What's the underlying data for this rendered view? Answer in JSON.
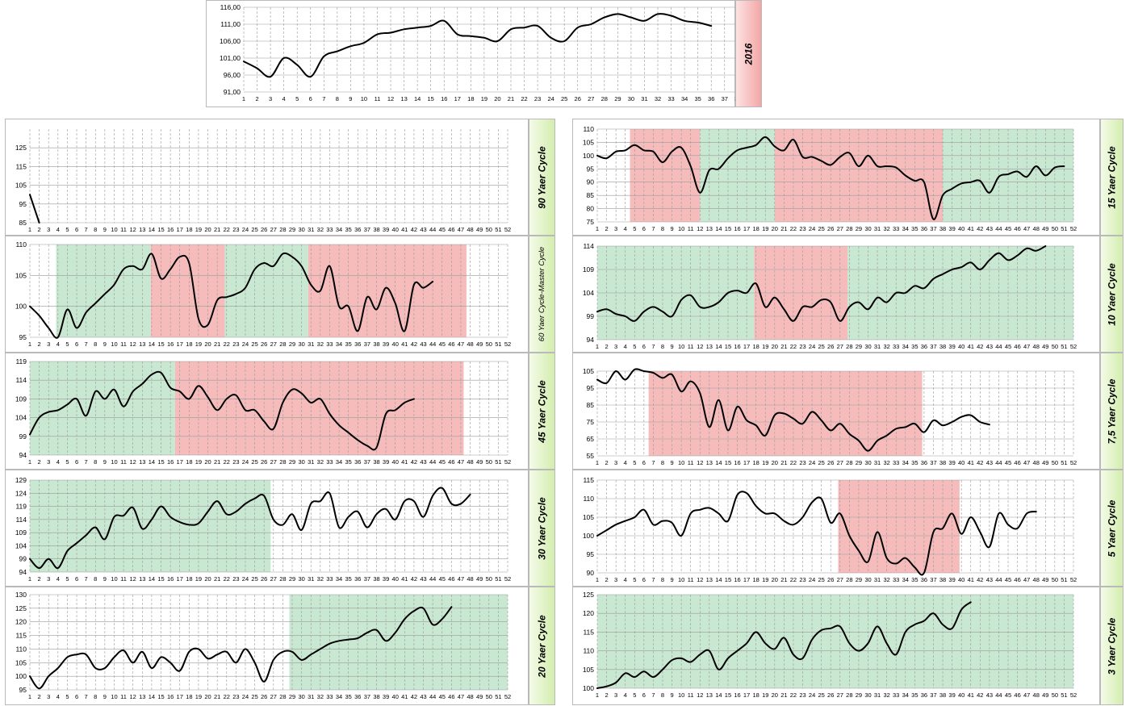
{
  "colors": {
    "green": "#c9e8d2",
    "red": "#f6bcbc",
    "line": "#000000",
    "grid": "#9a9a9a"
  },
  "x_labels": [
    "1",
    "2",
    "3",
    "4",
    "5",
    "6",
    "7",
    "8",
    "9",
    "10",
    "11",
    "12",
    "13",
    "14",
    "15",
    "16",
    "17",
    "18",
    "19",
    "20",
    "21",
    "22",
    "23",
    "24",
    "25",
    "26",
    "27",
    "28",
    "29",
    "30",
    "31",
    "32",
    "33",
    "34",
    "35",
    "36",
    "37",
    "38",
    "39",
    "40",
    "41",
    "42",
    "43",
    "44",
    "45",
    "46",
    "47",
    "48",
    "49",
    "50",
    "51",
    "52"
  ],
  "chart_data": [
    {
      "id": "y2016",
      "type": "line",
      "title": "2016",
      "label_style": "red",
      "ylim": [
        91,
        116
      ],
      "y_ticks": [
        "91,00",
        "96,00",
        "101,00",
        "106,00",
        "111,00",
        "116,00"
      ],
      "y_tick_values": [
        91,
        96,
        101,
        106,
        111,
        116
      ],
      "shading": [],
      "values": [
        100,
        98,
        95.5,
        101,
        99,
        95.5,
        101.5,
        103,
        104.5,
        105.5,
        108,
        108.5,
        109.5,
        110,
        110.5,
        112,
        108,
        107.5,
        107,
        106,
        109.5,
        110,
        110.5,
        107,
        106,
        110,
        111,
        113,
        114,
        113,
        112,
        114,
        113.5,
        112,
        111.5,
        110.5
      ]
    },
    {
      "id": "c90",
      "type": "line",
      "title": "90 Yaer Cycle",
      "label_style": "green",
      "ylim": [
        85,
        135
      ],
      "y_ticks": [
        "85",
        "95",
        "105",
        "115",
        "125"
      ],
      "y_tick_values": [
        85,
        95,
        105,
        115,
        125
      ],
      "shading": [],
      "values": [
        100,
        85
      ]
    },
    {
      "id": "c15",
      "type": "line",
      "title": "15 Yaer Cycle",
      "label_style": "green",
      "ylim": [
        75,
        110
      ],
      "y_ticks": [
        "75",
        "80",
        "85",
        "90",
        "95",
        "100",
        "105",
        "110"
      ],
      "y_tick_values": [
        75,
        80,
        85,
        90,
        95,
        100,
        105,
        110
      ],
      "shading": [
        {
          "from": 4.5,
          "to": 12,
          "color": "red"
        },
        {
          "from": 12,
          "to": 20,
          "color": "green"
        },
        {
          "from": 20,
          "to": 38,
          "color": "red"
        },
        {
          "from": 38,
          "to": 52,
          "color": "green"
        }
      ],
      "values": [
        100,
        99,
        101.5,
        102,
        104,
        102,
        101.5,
        97.5,
        101.5,
        103,
        96,
        86,
        94.5,
        95,
        99,
        102,
        103,
        104,
        107,
        103.5,
        102,
        106,
        99.5,
        99.5,
        98,
        96.5,
        99.5,
        101,
        96,
        100,
        96,
        96,
        95.5,
        92.5,
        90.5,
        90,
        76,
        85,
        87.5,
        89.5,
        90,
        90.5,
        86,
        92,
        93,
        94,
        92,
        96,
        92.5,
        95.5,
        96
      ]
    },
    {
      "id": "c60",
      "type": "line",
      "title": "60 Yaer Cycle-Master Cycle",
      "label_style": "green",
      "label_small": true,
      "ylim": [
        95,
        110
      ],
      "y_ticks": [
        "95",
        "100",
        "105",
        "110"
      ],
      "y_tick_values": [
        95,
        100,
        105,
        110
      ],
      "shading": [
        {
          "from": 3.8,
          "to": 13.9,
          "color": "green"
        },
        {
          "from": 13.9,
          "to": 21.8,
          "color": "red"
        },
        {
          "from": 21.8,
          "to": 30.7,
          "color": "green"
        },
        {
          "from": 30.7,
          "to": 47.6,
          "color": "red"
        }
      ],
      "values": [
        100,
        98.5,
        96.5,
        95,
        99.5,
        96.5,
        99,
        100.5,
        102,
        103.5,
        106,
        106.5,
        106,
        108.5,
        104.5,
        106,
        108,
        107,
        98,
        97,
        101,
        101.5,
        102,
        103,
        106,
        107,
        106.5,
        108.5,
        108,
        106.5,
        103.5,
        102.5,
        106.5,
        100,
        100,
        96,
        101.5,
        99.5,
        103,
        100.5,
        96,
        103.5,
        103,
        104
      ]
    },
    {
      "id": "c10",
      "type": "line",
      "title": "10 Yaer Cycle",
      "label_style": "green",
      "ylim": [
        94,
        114
      ],
      "y_ticks": [
        "94",
        "99",
        "104",
        "109",
        "114"
      ],
      "y_tick_values": [
        94,
        99,
        104,
        109,
        114
      ],
      "shading": [
        {
          "from": 0.7,
          "to": 17.8,
          "color": "green"
        },
        {
          "from": 17.8,
          "to": 27.8,
          "color": "red"
        },
        {
          "from": 27.8,
          "to": 52,
          "color": "green"
        }
      ],
      "values": [
        100,
        100.5,
        99.5,
        99,
        98,
        100,
        101,
        100,
        99,
        102.5,
        103.5,
        101,
        101,
        102,
        104,
        104.5,
        104,
        106,
        101,
        103,
        100.5,
        98,
        101,
        101,
        102.5,
        102,
        98,
        101,
        102,
        100.5,
        103,
        102,
        104,
        104,
        105.5,
        105,
        107,
        108,
        109,
        109.5,
        110.5,
        109,
        111,
        112.5,
        111,
        112,
        113.5,
        113,
        114
      ]
    },
    {
      "id": "c45",
      "type": "line",
      "title": "45 Yaer Cycle",
      "label_style": "green",
      "ylim": [
        94,
        119
      ],
      "y_ticks": [
        "94",
        "99",
        "104",
        "109",
        "114",
        "119"
      ],
      "y_tick_values": [
        94,
        99,
        104,
        109,
        114,
        119
      ],
      "shading": [
        {
          "from": 0.8,
          "to": 16.5,
          "color": "green"
        },
        {
          "from": 16.5,
          "to": 47.3,
          "color": "red"
        }
      ],
      "values": [
        99.5,
        104,
        105.5,
        106,
        107.5,
        109,
        104.5,
        111,
        109,
        111.5,
        107,
        111,
        113,
        115.5,
        116,
        112,
        111,
        109,
        112.5,
        109.5,
        106,
        109,
        110,
        106,
        106,
        103,
        101,
        108,
        111.5,
        110.5,
        108,
        109,
        105,
        102,
        100,
        98,
        96.5,
        96,
        105,
        106,
        108,
        109
      ]
    },
    {
      "id": "c75",
      "type": "line",
      "title": "7,5 Yaer Cycle",
      "label_style": "green",
      "ylim": [
        55,
        105
      ],
      "y_ticks": [
        "55",
        "65",
        "75",
        "85",
        "95",
        "105"
      ],
      "y_tick_values": [
        55,
        65,
        75,
        85,
        95,
        105
      ],
      "shading": [
        {
          "from": 6.5,
          "to": 35.8,
          "color": "red"
        }
      ],
      "values": [
        100,
        98,
        105,
        100,
        106,
        105,
        104,
        101,
        103,
        93,
        99,
        92,
        72,
        88,
        70,
        84,
        76,
        73,
        67,
        79,
        80,
        77,
        74,
        81,
        76,
        70,
        74,
        68,
        64,
        58,
        64,
        67,
        71,
        72,
        74,
        69,
        76,
        73,
        75,
        78,
        79,
        75,
        73.5
      ]
    },
    {
      "id": "c30",
      "type": "line",
      "title": "30 Yaer Cycle",
      "label_style": "green",
      "ylim": [
        94,
        129
      ],
      "y_ticks": [
        "94",
        "99",
        "104",
        "109",
        "114",
        "119",
        "124",
        "129"
      ],
      "y_tick_values": [
        94,
        99,
        104,
        109,
        114,
        119,
        124,
        129
      ],
      "shading": [
        {
          "from": 0.8,
          "to": 26.7,
          "color": "green"
        }
      ],
      "values": [
        99,
        95.5,
        99,
        95.5,
        102,
        105,
        108,
        111,
        106.5,
        115,
        115.5,
        118.5,
        110.5,
        114,
        119,
        115,
        113,
        112,
        112.5,
        117,
        121,
        116,
        117,
        120,
        122,
        123,
        114,
        112,
        116,
        110,
        120,
        121,
        124,
        111,
        115,
        117,
        111,
        116,
        118,
        114,
        121,
        121,
        115,
        123,
        126,
        120,
        120,
        123.5
      ]
    },
    {
      "id": "c5",
      "type": "line",
      "title": "5 Yaer Cycle",
      "label_style": "green",
      "ylim": [
        90,
        115
      ],
      "y_ticks": [
        "90",
        "95",
        "100",
        "105",
        "110",
        "115"
      ],
      "y_tick_values": [
        90,
        95,
        100,
        105,
        110,
        115
      ],
      "shading": [
        {
          "from": 26.8,
          "to": 39.8,
          "color": "red"
        }
      ],
      "values": [
        100,
        101.5,
        103,
        104,
        105,
        107,
        103,
        104,
        103.5,
        100,
        106,
        107,
        107.5,
        106,
        104,
        111,
        111.5,
        108,
        106,
        106,
        104,
        103,
        105,
        109,
        110,
        103.5,
        106,
        100,
        96,
        93,
        101,
        94,
        92.5,
        94,
        91.5,
        90,
        101,
        102,
        106,
        100.5,
        105,
        101,
        97,
        106,
        103,
        102,
        106,
        106.5
      ]
    },
    {
      "id": "c20",
      "type": "line",
      "title": "20 Yaer Cycle",
      "label_style": "green",
      "ylim": [
        95,
        130
      ],
      "y_ticks": [
        "95",
        "100",
        "105",
        "110",
        "115",
        "120",
        "125",
        "130"
      ],
      "y_tick_values": [
        95,
        100,
        105,
        110,
        115,
        120,
        125,
        130
      ],
      "shading": [
        {
          "from": 28.7,
          "to": 52.5,
          "color": "green"
        }
      ],
      "values": [
        100,
        95.5,
        100,
        103,
        107,
        108,
        108,
        103,
        103,
        107,
        109.5,
        105,
        109,
        103,
        107,
        105,
        102,
        109,
        110,
        106.5,
        108,
        109,
        105,
        110,
        105,
        98,
        106,
        109,
        109,
        106,
        108,
        110,
        112,
        113,
        113.5,
        114,
        116,
        117,
        113,
        116,
        121,
        124,
        125,
        119,
        121,
        125.5
      ]
    },
    {
      "id": "c3",
      "type": "line",
      "title": "3 Yaer Cycle",
      "label_style": "green",
      "ylim": [
        100,
        125
      ],
      "y_ticks": [
        "100",
        "105",
        "110",
        "115",
        "120",
        "125"
      ],
      "y_tick_values": [
        100,
        105,
        110,
        115,
        120,
        125
      ],
      "shading": [
        {
          "from": 0.6,
          "to": 52,
          "color": "green"
        }
      ],
      "values": [
        100,
        100.5,
        101.5,
        104,
        103,
        104.5,
        103,
        105,
        107.5,
        108,
        107,
        109,
        110,
        105,
        108,
        110,
        112,
        115,
        112,
        110.5,
        113.5,
        109,
        108,
        113,
        115.5,
        116,
        116.5,
        112,
        110,
        112,
        116.5,
        112,
        109,
        115,
        117,
        118,
        120,
        117,
        116,
        121,
        123
      ]
    }
  ]
}
